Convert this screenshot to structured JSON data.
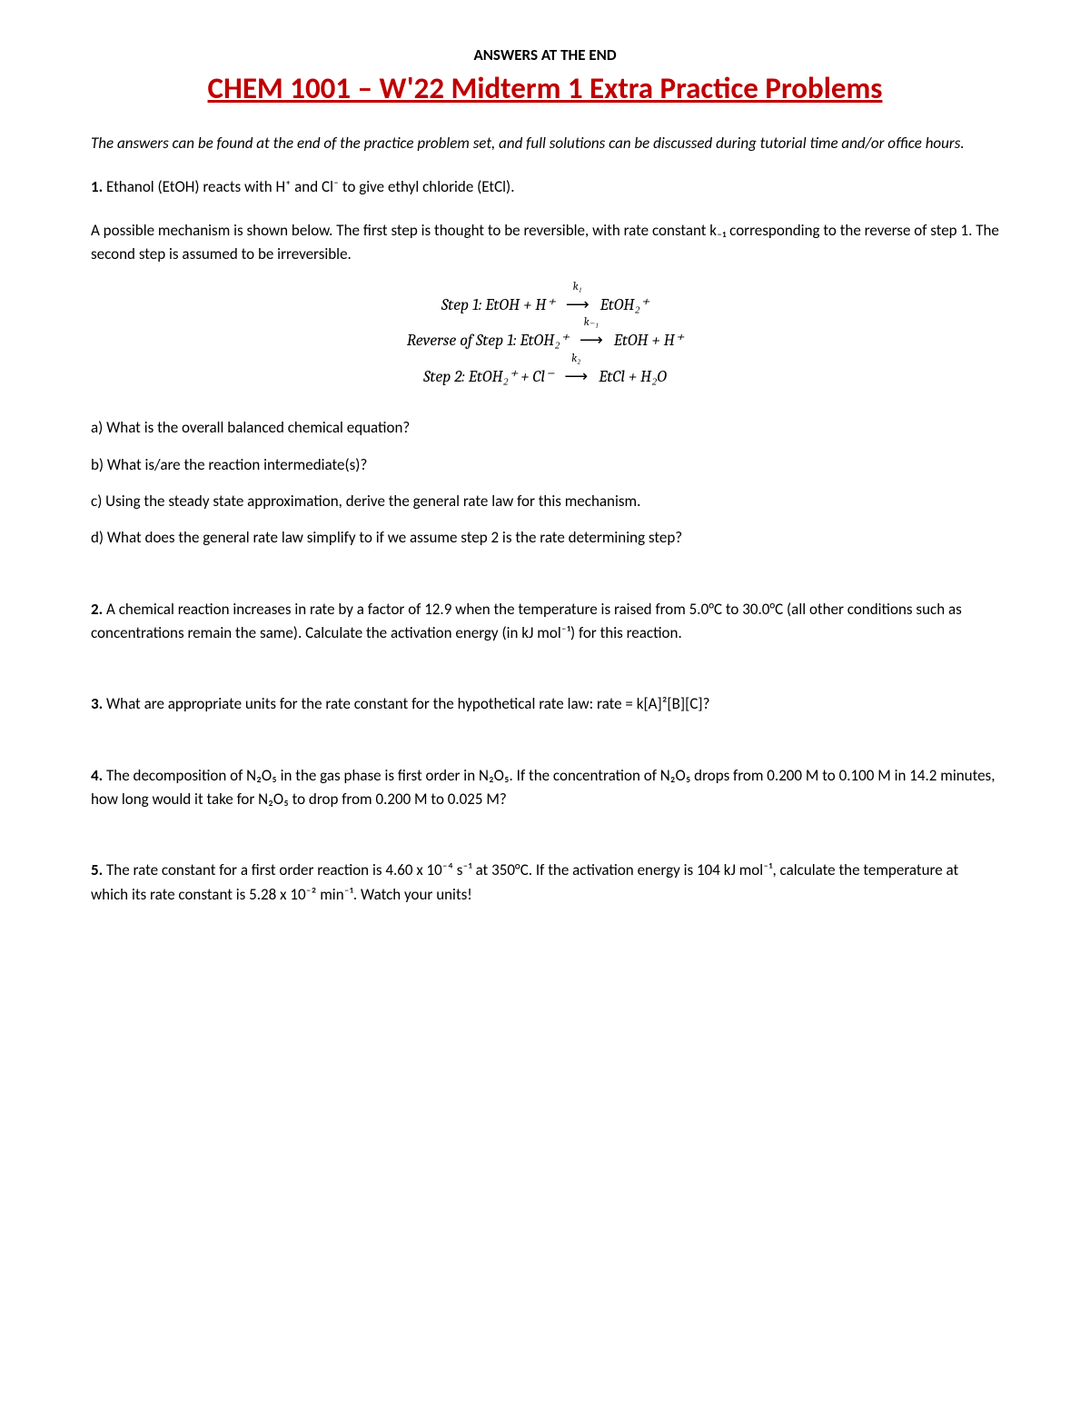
{
  "colors": {
    "title_color": "#c00000",
    "text_color": "#000000",
    "background_color": "#ffffff"
  },
  "header_small": "ANSWERS AT THE END",
  "main_title": "CHEM 1001 – W'22 Midterm 1 Extra Practice Problems",
  "intro": "The answers can be found at the end of the practice problem set, and full solutions can be discussed during tutorial time and/or office hours.",
  "q1": {
    "num": "1.",
    "intro": " Ethanol (EtOH) reacts with H⁺ and Cl⁻ to give ethyl chloride (EtCl).",
    "mech_text": "A possible mechanism is shown below. The first step is thought to be reversible, with rate constant k₋₁ corresponding to the reverse of step 1. The second step is assumed to be irreversible.",
    "eq1_left": "Step 1: EtOH + H⁺",
    "eq1_k": "k₁",
    "eq1_right": "EtOH₂⁺",
    "eq2_left": "Reverse of Step 1: EtOH₂⁺",
    "eq2_k": "k₋₁",
    "eq2_right": "EtOH +  H⁺",
    "eq3_left": "Step 2: EtOH₂⁺ + Cl⁻",
    "eq3_k": "k₂",
    "eq3_right": "EtCl  + H₂O",
    "a": "a) What is the overall balanced chemical equation?",
    "b": "b) What is/are the reaction intermediate(s)?",
    "c": "c) Using the steady state approximation, derive the general rate law for this mechanism.",
    "d": "d) What does the general rate law simplify to if we assume step 2 is the rate determining step?"
  },
  "q2": {
    "num": "2.",
    "text": " A chemical reaction increases in rate by a factor of 12.9 when the temperature is raised from 5.0°C to 30.0°C (all other conditions such as concentrations remain the same). Calculate the activation energy (in kJ mol⁻¹) for this reaction."
  },
  "q3": {
    "num": "3.",
    "text": " What are appropriate units for the rate constant for the hypothetical rate law: rate = k[A]²[B][C]?"
  },
  "q4": {
    "num": "4.",
    "text": " The decomposition of N₂O₅ in the gas phase is first order in N₂O₅. If the concentration of N₂O₅ drops from 0.200 M to 0.100 M in 14.2 minutes, how long would it take for N₂O₅ to drop from 0.200 M to 0.025 M?"
  },
  "q5": {
    "num": "5.",
    "text": " The rate constant for a first order reaction is 4.60 x 10⁻⁴ s⁻¹ at 350°C. If the activation energy is 104 kJ mol⁻¹, calculate the temperature at which its rate constant is 5.28 x 10⁻² min⁻¹. Watch your units!"
  },
  "arrow": "⟶"
}
